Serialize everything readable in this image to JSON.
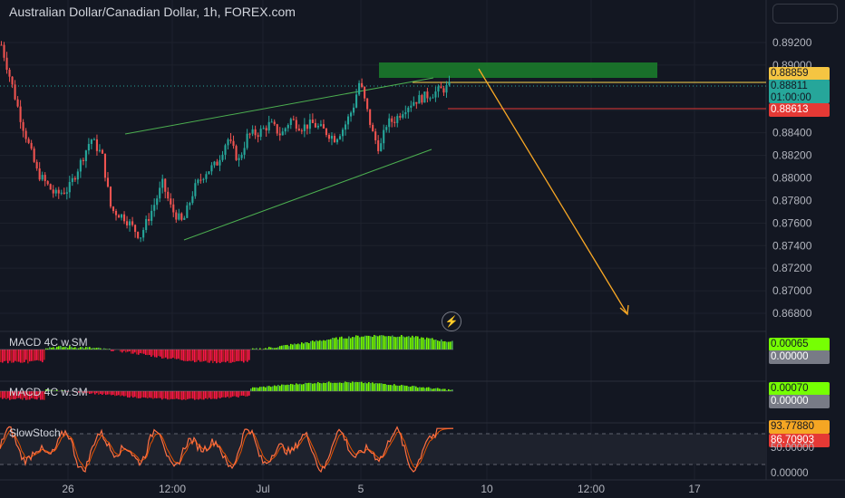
{
  "header": {
    "title": "Australian Dollar/Canadian Dollar, 1h, FOREX.com"
  },
  "indicators": [
    {
      "name": "MACD 4C w.SM",
      "value": "0.00065",
      "zero": "0.00000"
    },
    {
      "name": "MACD 4C w.SM",
      "value": "0.00070",
      "zero": "0.00000"
    },
    {
      "name": "SlowStoch",
      "k": "93.77880",
      "d": "86.70903",
      "mid": "50.00000",
      "low": "0.00000"
    }
  ],
  "price_tags": {
    "target": "0.88859",
    "last": "0.88811",
    "countdown": "01:00:00",
    "stop": "0.88613"
  },
  "chart_data": {
    "type": "candlestick",
    "title": "Australian Dollar/Canadian Dollar, 1h, FOREX.com",
    "xlabel": "",
    "ylabel": "",
    "ylim": [
      0.866,
      0.8948
    ],
    "y_ticks": [
      "0.89200",
      "0.89000",
      "0.88600",
      "0.88400",
      "0.88200",
      "0.88000",
      "0.87800",
      "0.87600",
      "0.87400",
      "0.87200",
      "0.87000",
      "0.86800"
    ],
    "x_ticks": [
      "26",
      "12:00",
      "Jul",
      "5",
      "10",
      "12:00",
      "17"
    ],
    "price_path": [
      [
        0,
        0.8918
      ],
      [
        0.02,
        0.8888
      ],
      [
        0.045,
        0.885
      ],
      [
        0.08,
        0.8805
      ],
      [
        0.12,
        0.8785
      ],
      [
        0.15,
        0.879
      ],
      [
        0.175,
        0.8812
      ],
      [
        0.2,
        0.8835
      ],
      [
        0.225,
        0.882
      ],
      [
        0.245,
        0.8772
      ],
      [
        0.275,
        0.8765
      ],
      [
        0.31,
        0.8748
      ],
      [
        0.34,
        0.8775
      ],
      [
        0.36,
        0.8795
      ],
      [
        0.38,
        0.8772
      ],
      [
        0.405,
        0.876
      ],
      [
        0.43,
        0.879
      ],
      [
        0.455,
        0.8805
      ],
      [
        0.48,
        0.8812
      ],
      [
        0.505,
        0.8835
      ],
      [
        0.53,
        0.8815
      ],
      [
        0.55,
        0.8838
      ],
      [
        0.575,
        0.884
      ],
      [
        0.6,
        0.8848
      ],
      [
        0.625,
        0.8838
      ],
      [
        0.645,
        0.8852
      ],
      [
        0.67,
        0.8845
      ],
      [
        0.695,
        0.8848
      ],
      [
        0.72,
        0.8842
      ],
      [
        0.745,
        0.8835
      ],
      [
        0.765,
        0.8845
      ],
      [
        0.785,
        0.8862
      ],
      [
        0.8,
        0.8886
      ],
      [
        0.815,
        0.8862
      ],
      [
        0.83,
        0.8838
      ],
      [
        0.845,
        0.8825
      ],
      [
        0.86,
        0.8848
      ],
      [
        0.88,
        0.8852
      ],
      [
        0.9,
        0.8862
      ],
      [
        0.92,
        0.8868
      ],
      [
        1,
        0.8881
      ]
    ],
    "annotations": {
      "wedge_upper": [
        [
          0.2,
          0.8838
        ],
        [
          0.96,
          0.8894
        ]
      ],
      "wedge_lower": [
        [
          0.3,
          0.8745
        ],
        [
          0.95,
          0.8822
        ]
      ],
      "target_zone": [
        0.8885,
        0.8903
      ],
      "projection": "0.86800"
    }
  }
}
